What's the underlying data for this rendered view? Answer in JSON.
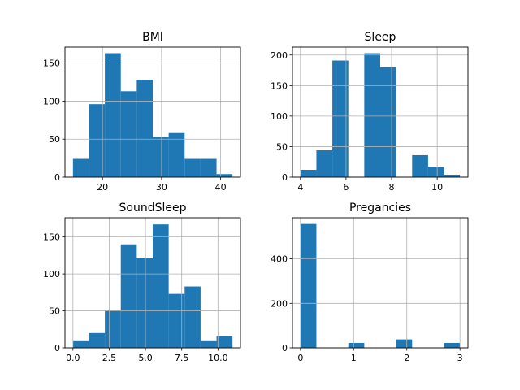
{
  "chart_data": [
    {
      "type": "bar",
      "title": "BMI",
      "bin_edges": [
        15.0,
        17.7,
        20.4,
        23.1,
        25.8,
        28.5,
        31.2,
        33.9,
        36.6,
        39.3,
        42.0
      ],
      "values": [
        24,
        96,
        163,
        113,
        128,
        53,
        58,
        24,
        24,
        4
      ],
      "xlim": [
        13.65,
        43.35
      ],
      "ylim": [
        0,
        171
      ],
      "xticks": [
        20,
        30,
        40
      ],
      "yticks": [
        0,
        50,
        100,
        150
      ],
      "grid": true
    },
    {
      "type": "bar",
      "title": "Sleep",
      "bin_edges": [
        4.0,
        4.7,
        5.4,
        6.1,
        6.8,
        7.5,
        8.2,
        8.9,
        9.6,
        10.3,
        11.0
      ],
      "values": [
        12,
        44,
        191,
        0,
        203,
        180,
        0,
        36,
        17,
        4
      ],
      "xlim": [
        3.65,
        11.35
      ],
      "ylim": [
        0,
        213
      ],
      "xticks": [
        4,
        6,
        8,
        10
      ],
      "yticks": [
        0,
        50,
        100,
        150,
        200
      ],
      "grid": true
    },
    {
      "type": "bar",
      "title": "SoundSleep",
      "bin_edges": [
        0.0,
        1.1,
        2.2,
        3.3,
        4.4,
        5.5,
        6.6,
        7.7,
        8.8,
        9.9,
        11.0
      ],
      "values": [
        9,
        20,
        51,
        140,
        121,
        167,
        73,
        83,
        9,
        16
      ],
      "xlim": [
        -0.55,
        11.55
      ],
      "ylim": [
        0,
        176
      ],
      "xticks": [
        0.0,
        2.5,
        5.0,
        7.5,
        10.0
      ],
      "xtick_labels": [
        "0.0",
        "2.5",
        "5.0",
        "7.5",
        "10.0"
      ],
      "yticks": [
        0,
        50,
        100,
        150
      ],
      "grid": true
    },
    {
      "type": "bar",
      "title": "Pregancies",
      "bin_edges": [
        0.0,
        0.3,
        0.6,
        0.9,
        1.2,
        1.5,
        1.8,
        2.1,
        2.4,
        2.7,
        3.0
      ],
      "values": [
        557,
        0,
        0,
        22,
        0,
        0,
        38,
        0,
        0,
        22
      ],
      "xlim": [
        -0.15,
        3.15
      ],
      "ylim": [
        0,
        585
      ],
      "xticks": [
        0,
        1,
        2,
        3
      ],
      "yticks": [
        0,
        200,
        400
      ],
      "grid": true
    }
  ],
  "colors": {
    "bar": "#1f77b4",
    "grid": "#b0b0b0",
    "axis": "#000000"
  }
}
